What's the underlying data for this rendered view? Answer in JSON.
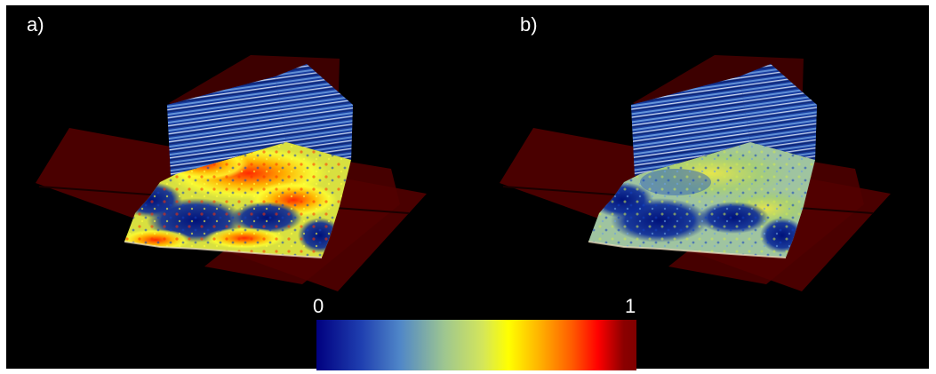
{
  "panels": [
    {
      "id": "a",
      "label": "a)"
    },
    {
      "id": "b",
      "label": "b)"
    }
  ],
  "colorbar": {
    "min_label": "0",
    "max_label": "1",
    "colors": [
      "#000080",
      "#1f3fb0",
      "#4f86c8",
      "#9ec690",
      "#d4e65a",
      "#ffff00",
      "#ffb000",
      "#ff5a00",
      "#ff0000",
      "#8b0000",
      "#800000"
    ]
  }
}
